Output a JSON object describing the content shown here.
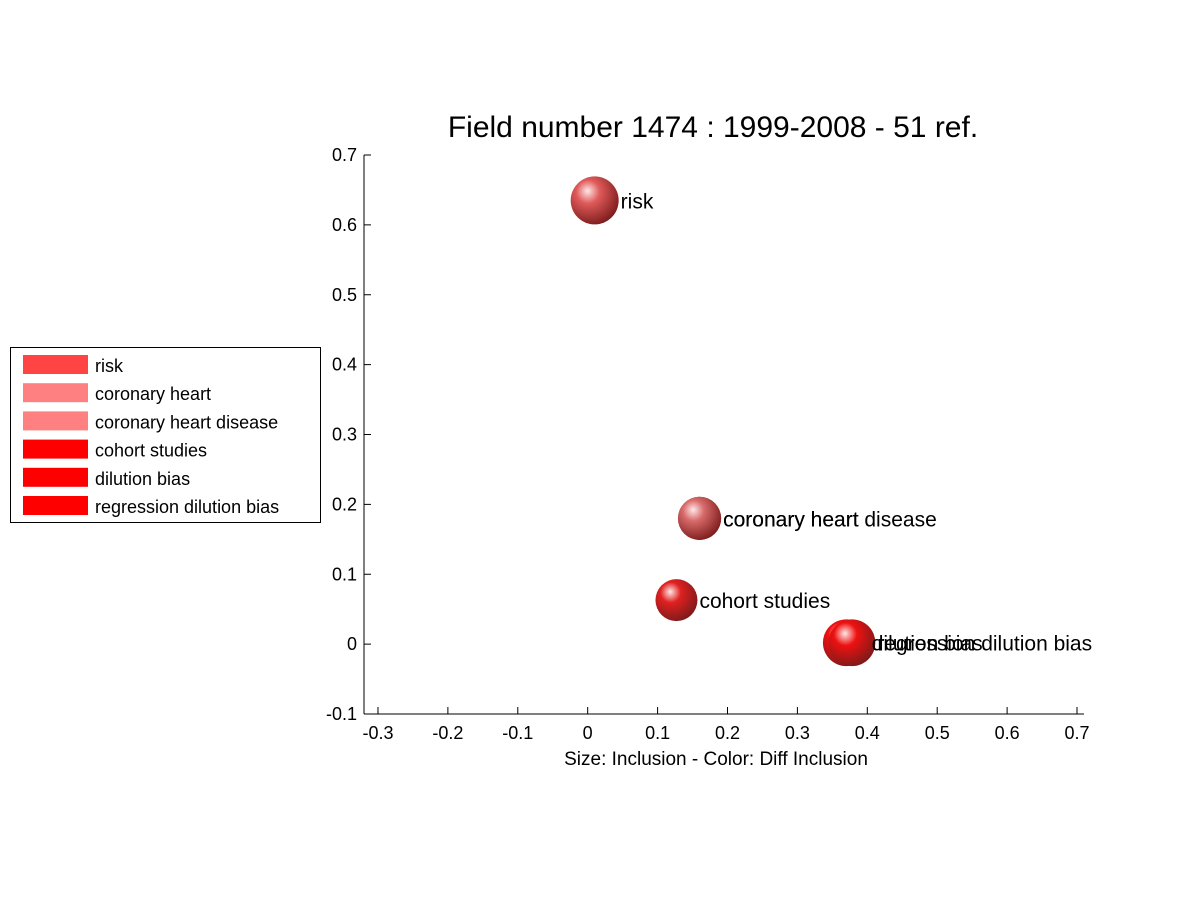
{
  "chart_data": {
    "type": "scatter",
    "title": "Field number 1474 : 1999-2008  - 51 ref.",
    "xlabel": "Size: Inclusion - Color: Diff Inclusion",
    "ylabel": "",
    "xlim": [
      -0.32,
      0.71
    ],
    "ylim": [
      -0.1,
      0.7
    ],
    "xticks": [
      -0.3,
      -0.2,
      -0.1,
      0,
      0.1,
      0.2,
      0.3,
      0.4,
      0.5,
      0.6,
      0.7
    ],
    "xtick_labels": [
      "-0.3",
      "-0.2",
      "-0.1",
      "0",
      "0.1",
      "0.2",
      "0.3",
      "0.4",
      "0.5",
      "0.6",
      "0.7"
    ],
    "yticks": [
      -0.1,
      0,
      0.1,
      0.2,
      0.3,
      0.4,
      0.5,
      0.6,
      0.7
    ],
    "ytick_labels": [
      "-0.1",
      "0",
      "0.1",
      "0.2",
      "0.3",
      "0.4",
      "0.5",
      "0.6",
      "0.7"
    ],
    "grid": false,
    "legend_position": "left",
    "points": [
      {
        "label": "risk",
        "x": 0.01,
        "y": 0.635,
        "size": 1.0,
        "color": "#e05a5a"
      },
      {
        "label": "coronary heart",
        "x": 0.16,
        "y": 0.18,
        "size": 0.8,
        "color": "#d86a6a"
      },
      {
        "label": "coronary heart disease",
        "x": 0.16,
        "y": 0.18,
        "size": 0.8,
        "color": "#d86a6a"
      },
      {
        "label": "cohort studies",
        "x": 0.127,
        "y": 0.063,
        "size": 0.75,
        "color": "#e02020"
      },
      {
        "label": "dilution bias",
        "x": 0.37,
        "y": 0.002,
        "size": 0.95,
        "color": "#ee1111"
      },
      {
        "label": "regression dilution bias",
        "x": 0.378,
        "y": 0.002,
        "size": 0.95,
        "color": "#ee1111"
      }
    ],
    "legend": [
      {
        "label": "risk",
        "color": "#ff4444"
      },
      {
        "label": "coronary heart",
        "color": "#ff8080"
      },
      {
        "label": "coronary heart disease",
        "color": "#ff8080"
      },
      {
        "label": "cohort studies",
        "color": "#ff0000"
      },
      {
        "label": "dilution bias",
        "color": "#ff0000"
      },
      {
        "label": "regression dilution bias",
        "color": "#ff0000"
      }
    ]
  }
}
